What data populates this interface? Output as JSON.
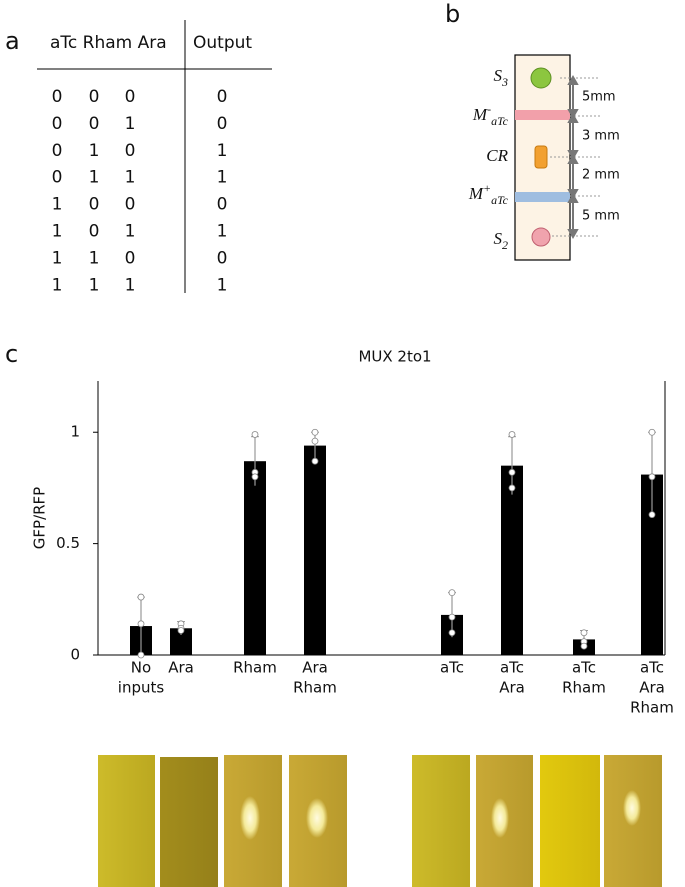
{
  "panels": [
    "a",
    "b",
    "c"
  ],
  "truth_table": {
    "headers": [
      "aTc Rham Ara",
      "Output"
    ],
    "rows": [
      [
        0,
        0,
        0,
        0
      ],
      [
        0,
        0,
        1,
        0
      ],
      [
        0,
        1,
        0,
        1
      ],
      [
        0,
        1,
        1,
        1
      ],
      [
        1,
        0,
        0,
        0
      ],
      [
        1,
        0,
        1,
        1
      ],
      [
        1,
        1,
        0,
        0
      ],
      [
        1,
        1,
        1,
        1
      ]
    ]
  },
  "diagram": {
    "labels": [
      {
        "main": "S",
        "sub": "3"
      },
      {
        "main": "M",
        "sup": "-",
        "sub": "aTc"
      },
      {
        "main": "CR"
      },
      {
        "main": "M",
        "sup": "+",
        "sub": "aTc"
      },
      {
        "main": "S",
        "sub": "2"
      }
    ],
    "distances": [
      "5mm",
      "3 mm",
      "2 mm",
      "5 mm"
    ]
  },
  "chart_data": {
    "type": "bar",
    "title": "MUX 2to1",
    "y_label": "GFP/RFP",
    "categories": [
      [
        "No",
        "inputs"
      ],
      [
        "Ara"
      ],
      [
        "Rham"
      ],
      [
        "Ara",
        "Rham"
      ],
      [
        "aTc"
      ],
      [
        "aTc",
        "Ara"
      ],
      [
        "aTc",
        "Rham"
      ],
      [
        "aTc",
        "Ara",
        "Rham"
      ]
    ],
    "values": [
      0.13,
      0.12,
      0.87,
      0.94,
      0.18,
      0.85,
      0.07,
      0.81
    ],
    "errors": [
      0.13,
      0.03,
      0.11,
      0.06,
      0.1,
      0.13,
      0.04,
      0.19
    ],
    "points": [
      [
        0.26,
        0.14,
        0.0
      ],
      [
        0.14,
        0.12,
        0.11
      ],
      [
        0.99,
        0.82,
        0.8
      ],
      [
        1.0,
        0.96,
        0.87
      ],
      [
        0.28,
        0.17,
        0.1
      ],
      [
        0.99,
        0.82,
        0.75
      ],
      [
        0.1,
        0.06,
        0.04
      ],
      [
        1.0,
        0.8,
        0.63
      ]
    ],
    "color": "#000000",
    "ylim": [
      0,
      1.23
    ],
    "yticks": [
      0,
      0.5,
      1
    ]
  }
}
